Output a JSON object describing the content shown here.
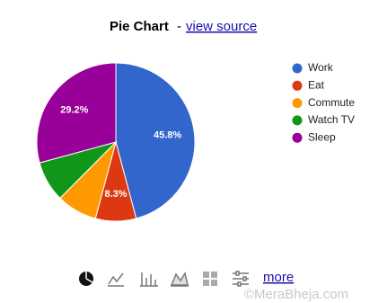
{
  "header": {
    "title": "Pie Chart",
    "separator": "-",
    "link": "view source"
  },
  "chart_data": {
    "type": "pie",
    "categories": [
      "Work",
      "Eat",
      "Commute",
      "Watch TV",
      "Sleep"
    ],
    "values": [
      45.8,
      8.3,
      8.3,
      8.3,
      29.2
    ],
    "value_labels": [
      "45.8%",
      "8.3%",
      null,
      null,
      "29.2%"
    ],
    "colors": [
      "#3366cc",
      "#dc3912",
      "#ff9900",
      "#109618",
      "#990099"
    ],
    "legend": "right"
  },
  "toolbar": {
    "more": "more"
  },
  "watermark": "©MeraBheja.com"
}
